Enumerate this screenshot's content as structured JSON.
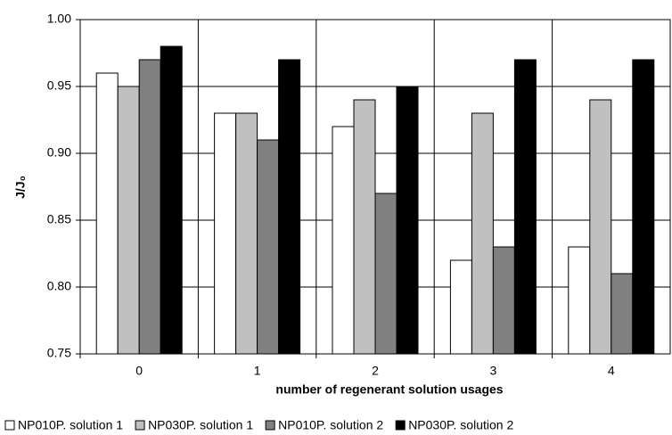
{
  "chart_data": {
    "type": "bar",
    "x_label": "number of regenerant solution usages",
    "y_label": "J/J₀",
    "categories": [
      "0",
      "1",
      "2",
      "3",
      "4"
    ],
    "series": [
      {
        "name": "NP010P. solution 1",
        "color": "#ffffff",
        "values": [
          0.96,
          0.93,
          0.92,
          0.82,
          0.83
        ]
      },
      {
        "name": "NP030P. solution 1",
        "color": "#c0c0c0",
        "values": [
          0.95,
          0.93,
          0.94,
          0.93,
          0.94
        ]
      },
      {
        "name": "NP010P. solution 2",
        "color": "#808080",
        "values": [
          0.97,
          0.91,
          0.87,
          0.83,
          0.81
        ]
      },
      {
        "name": "NP030P. solution 2",
        "color": "#000000",
        "values": [
          0.98,
          0.97,
          0.95,
          0.97,
          0.97
        ]
      }
    ],
    "ylim": [
      0.75,
      1.0
    ],
    "yticks": [
      0.75,
      {
        "value": 0.8,
        "label": "0.80"
      },
      0.85,
      {
        "value": 0.9,
        "label": "0.90"
      },
      0.95,
      {
        "value": 1.0,
        "label": "1.00"
      }
    ],
    "grid": true
  }
}
